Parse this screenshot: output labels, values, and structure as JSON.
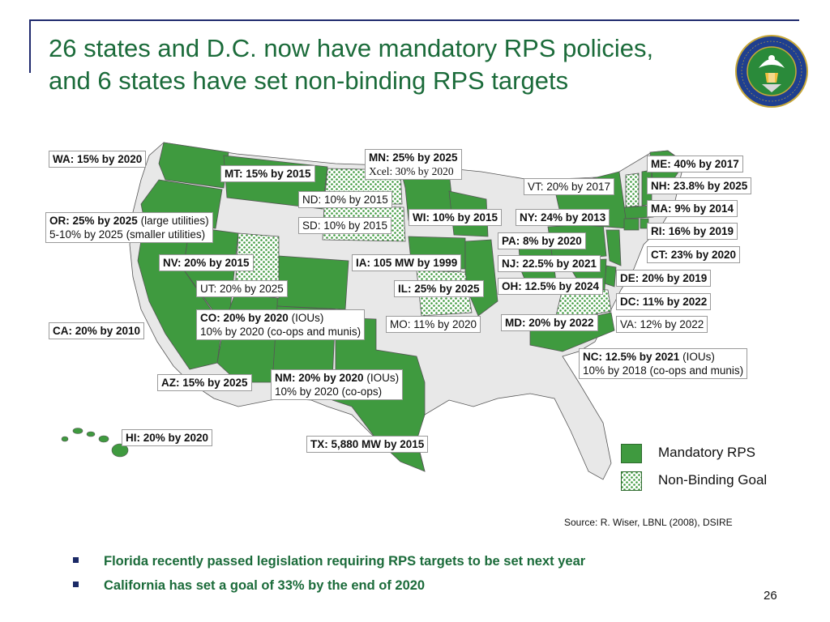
{
  "slide": {
    "title_line1": "26 states and D.C. now have mandatory RPS policies,",
    "title_line2": "and 6 states have set non-binding RPS targets",
    "source": "Source: R. Wiser, LBNL (2008), DSIRE",
    "page_number": "26",
    "bullets": [
      "Florida recently passed legislation requiring RPS targets to be set next year",
      "California has set a goal of 33% by the end of 2020"
    ]
  },
  "legend": {
    "mandatory": "Mandatory RPS",
    "nonbinding": "Non-Binding Goal"
  },
  "colors": {
    "mandatory": "#3f9a3f",
    "nonbinding_dot": "#3f9a3f",
    "none": "#e8e8e8",
    "title": "#1b6b3a",
    "frame": "#1f2a6e"
  },
  "seal": {
    "logo_text": "DEPARTMENT OF ENERGY · UNITED STATES OF AMERICA"
  },
  "labels": {
    "wa": {
      "a": "WA: 15% by 2020"
    },
    "mt": {
      "a": "MT: 15% by 2015"
    },
    "mn": {
      "a": "MN: 25% by 2025",
      "b": "Xcel: 30% by 2020"
    },
    "vt": {
      "a": "VT: 20% by 2017"
    },
    "me": {
      "a": "ME: 40% by 2017"
    },
    "nh": {
      "a": "NH: 23.8% by 2025"
    },
    "nd": {
      "a": "ND: 10% by 2015"
    },
    "or": {
      "a": "OR: 25% by 2025",
      "a2": "(large utilities)",
      "b": "5-10% by 2025 (smaller utilities)"
    },
    "sd": {
      "a": "SD: 10% by 2015"
    },
    "wi": {
      "a": "WI: 10% by 2015"
    },
    "ny": {
      "a": "NY: 24% by 2013"
    },
    "ma": {
      "a": "MA: 9% by 2014"
    },
    "pa": {
      "a": "PA: 8% by 2020"
    },
    "ri": {
      "a": "RI: 16% by 2019"
    },
    "nv": {
      "a": "NV: 20% by 2015"
    },
    "ia": {
      "a": "IA: 105 MW by 1999"
    },
    "nj": {
      "a": "NJ: 22.5% by 2021"
    },
    "ct": {
      "a": "CT: 23% by 2020"
    },
    "ut": {
      "a": "UT: 20% by 2025"
    },
    "il": {
      "a": "IL: 25% by 2025"
    },
    "oh": {
      "a": "OH: 12.5% by 2024"
    },
    "de": {
      "a": "DE: 20% by 2019"
    },
    "co": {
      "a": "CO: 20% by 2020",
      "a2": "(IOUs)",
      "b": "10% by 2020 (co-ops and munis)"
    },
    "mo": {
      "a": "MO: 11% by 2020"
    },
    "md": {
      "a": "MD: 20% by 2022"
    },
    "dc": {
      "a": "DC: 11% by 2022"
    },
    "va": {
      "a": "VA: 12% by 2022"
    },
    "ca": {
      "a": "CA: 20% by 2010"
    },
    "nc": {
      "a": "NC: 12.5% by 2021",
      "a2": "(IOUs)",
      "b": "10% by 2018 (co-ops and munis)"
    },
    "az": {
      "a": "AZ: 15% by 2025"
    },
    "nm": {
      "a": "NM: 20% by 2020",
      "a2": "(IOUs)",
      "b": "10% by 2020 (co-ops)"
    },
    "hi": {
      "a": "HI: 20% by 2020"
    },
    "tx": {
      "a": "TX: 5,880 MW by 2015"
    }
  }
}
